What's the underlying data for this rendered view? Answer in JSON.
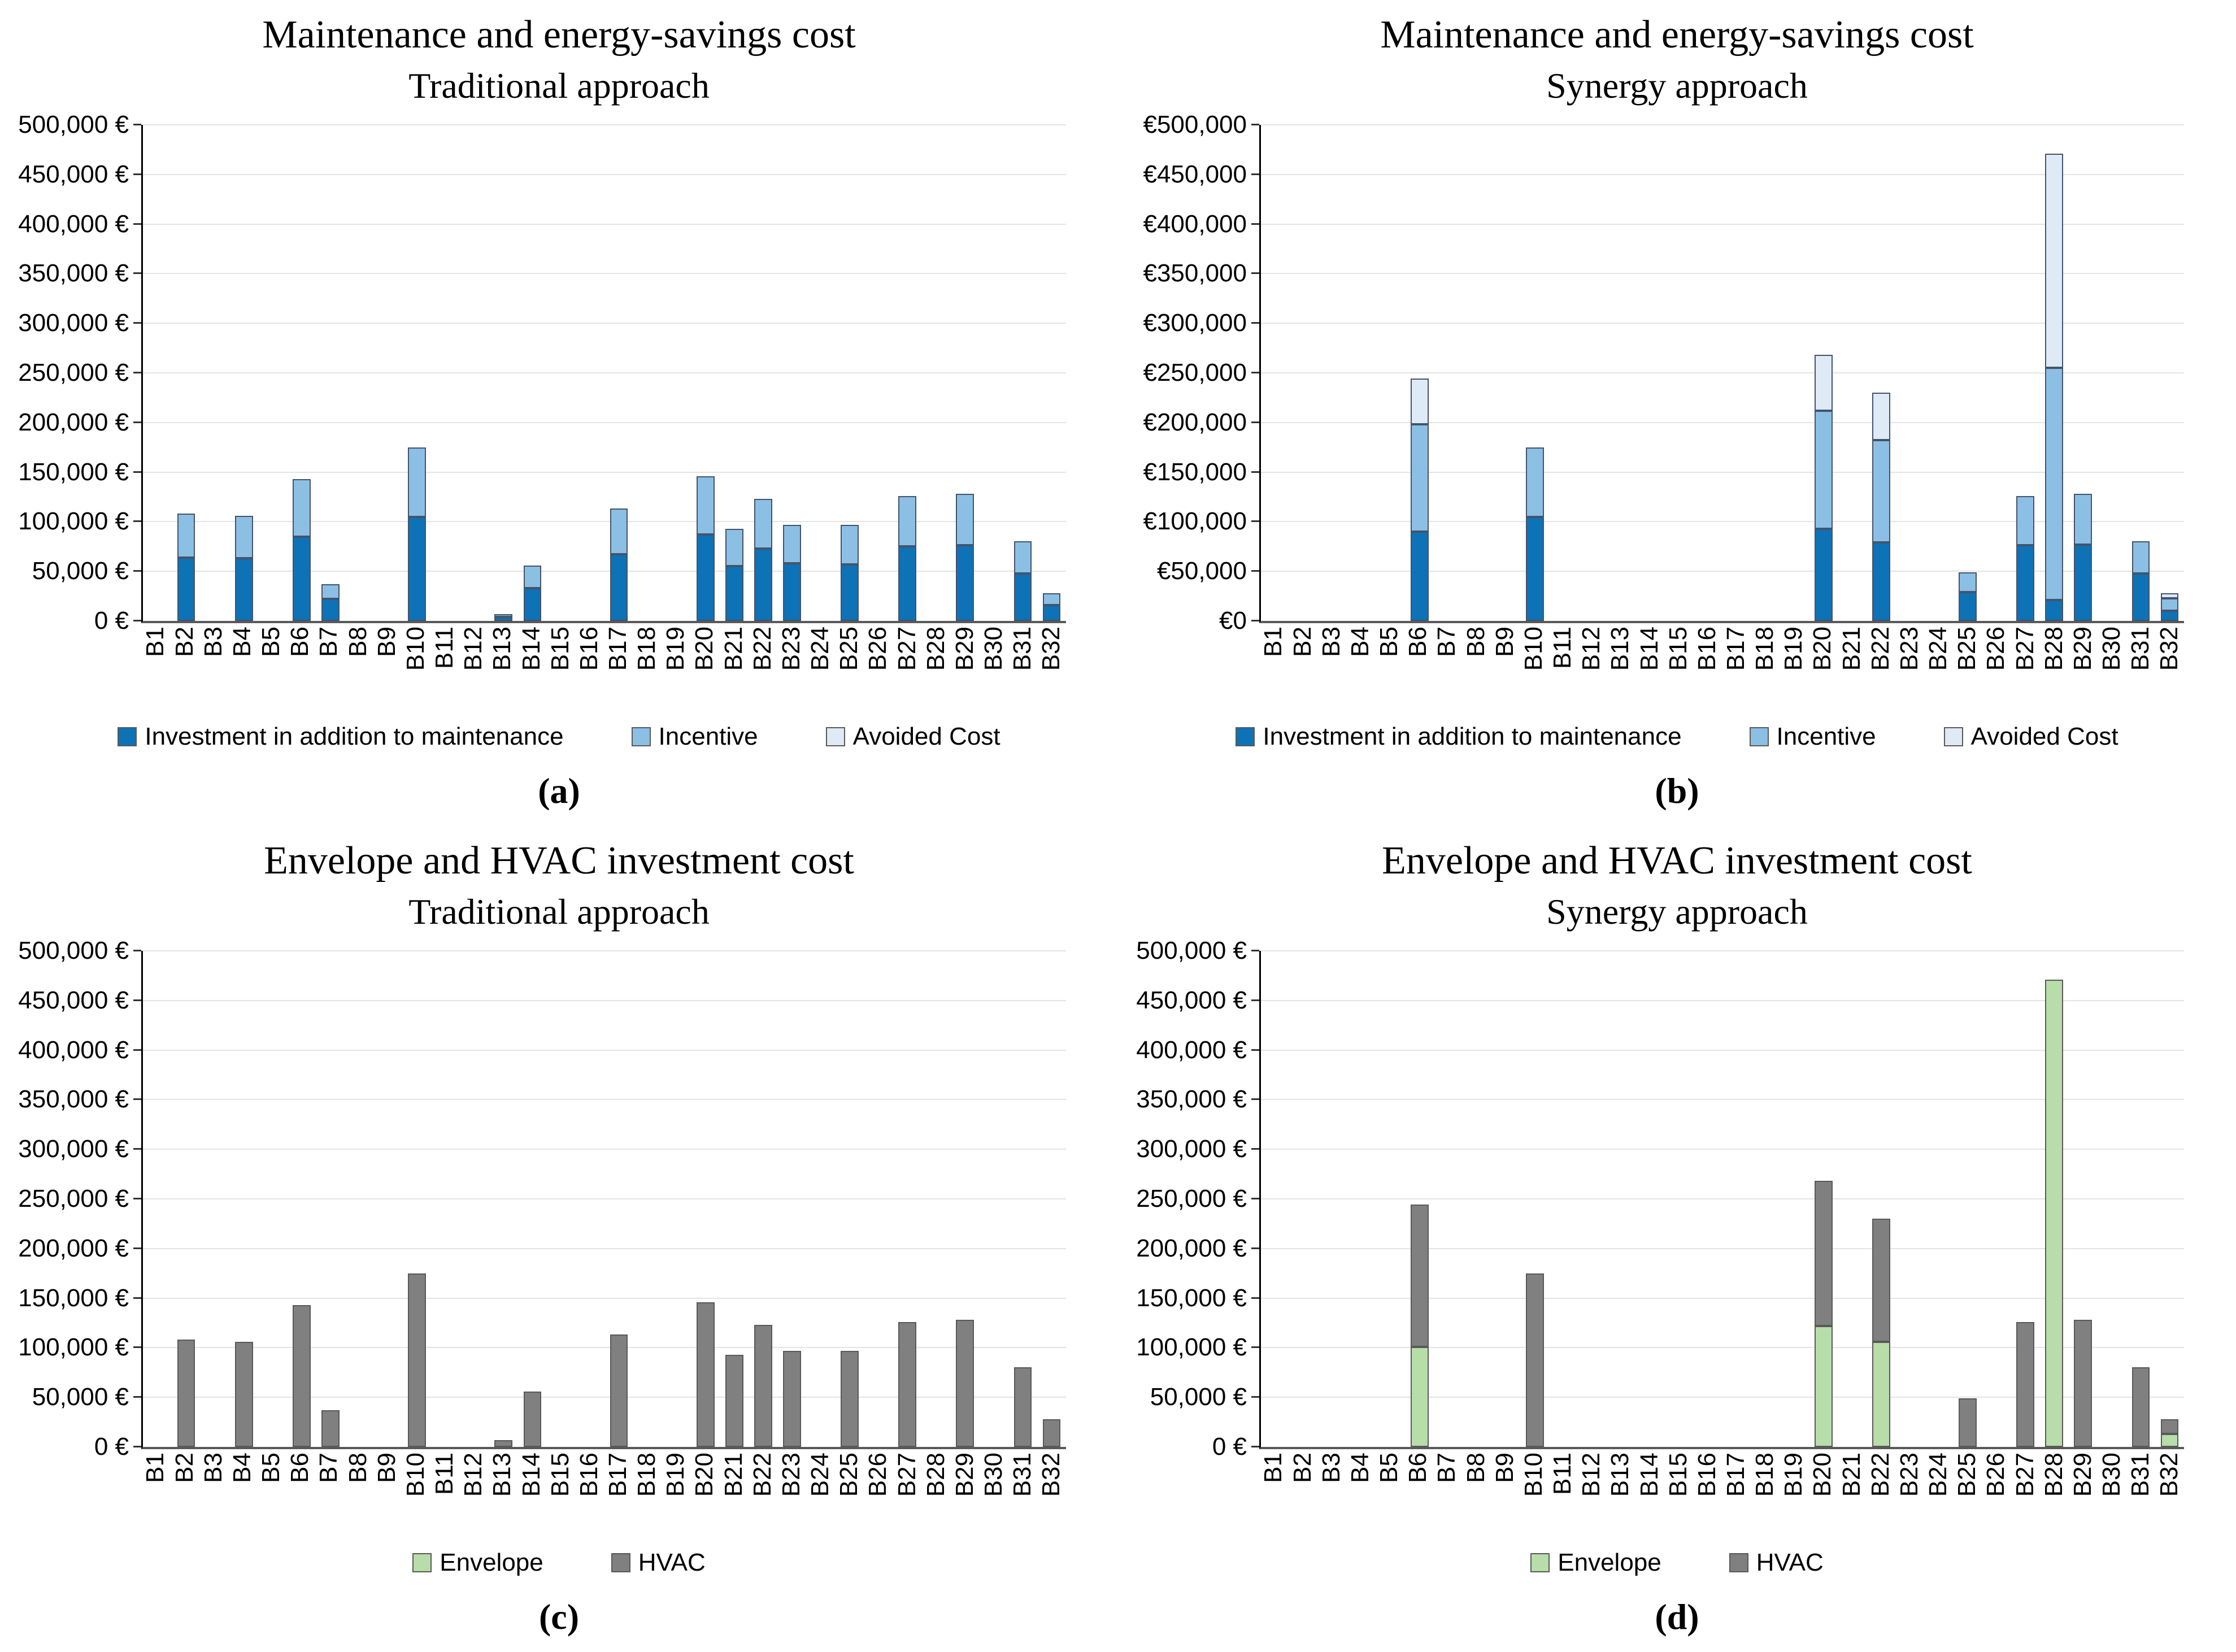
{
  "figure": {
    "panels": [
      {
        "id": "a",
        "title": "Maintenance and energy-savings cost",
        "subtitle": "Traditional approach",
        "caption": "(a)",
        "bar_border": "#44546A",
        "axis": {
          "ymax": 500000,
          "step": 50000,
          "grid": true,
          "y_tick_labels": [
            "0 €",
            "50,000 €",
            "100,000 €",
            "150,000 €",
            "200,000 €",
            "250,000 €",
            "300,000 €",
            "350,000 €",
            "400,000 €",
            "450,000 €",
            "500,000 €"
          ]
        },
        "legend": [
          {
            "label": "Investment in addition to maintenance",
            "color": "#0E72B7"
          },
          {
            "label": "Incentive",
            "color": "#8CBFE4"
          },
          {
            "label": "Avoided Cost",
            "color": "#DEEAF6"
          }
        ],
        "chart_data": {
          "type": "bar",
          "stacked": true,
          "unit": "EUR",
          "ylim": [
            0,
            500000
          ],
          "categories": [
            "B1",
            "B2",
            "B3",
            "B4",
            "B5",
            "B6",
            "B7",
            "B8",
            "B9",
            "B10",
            "B11",
            "B12",
            "B13",
            "B14",
            "B15",
            "B16",
            "B17",
            "B18",
            "B19",
            "B20",
            "B21",
            "B22",
            "B23",
            "B24",
            "B25",
            "B26",
            "B27",
            "B28",
            "B29",
            "B30",
            "B31",
            "B32"
          ],
          "series": [
            {
              "name": "Investment in addition to maintenance",
              "color": "#0E72B7",
              "values": [
                0,
                64000,
                0,
                63000,
                0,
                85000,
                22000,
                0,
                0,
                105000,
                0,
                0,
                4000,
                33000,
                0,
                0,
                67000,
                0,
                0,
                87000,
                55000,
                73000,
                58000,
                0,
                57000,
                0,
                75000,
                0,
                76000,
                0,
                48000,
                16000
              ]
            },
            {
              "name": "Incentive",
              "color": "#8CBFE4",
              "values": [
                0,
                44000,
                0,
                43000,
                0,
                58000,
                15000,
                0,
                0,
                70000,
                0,
                0,
                3000,
                23000,
                0,
                0,
                46000,
                0,
                0,
                59000,
                38000,
                50000,
                39000,
                0,
                40000,
                0,
                51000,
                0,
                52000,
                0,
                32000,
                12000
              ]
            },
            {
              "name": "Avoided Cost",
              "color": "#DEEAF6",
              "values": [
                0,
                0,
                0,
                0,
                0,
                0,
                0,
                0,
                0,
                0,
                0,
                0,
                0,
                0,
                0,
                0,
                0,
                0,
                0,
                0,
                0,
                0,
                0,
                0,
                0,
                0,
                0,
                0,
                0,
                0,
                0,
                0
              ]
            }
          ]
        }
      },
      {
        "id": "b",
        "title": "Maintenance and energy-savings cost",
        "subtitle": "Synergy approach",
        "caption": "(b)",
        "bar_border": "#44546A",
        "axis": {
          "ymax": 500000,
          "step": 50000,
          "grid": true,
          "y_tick_labels": [
            "€0",
            "€50,000",
            "€100,000",
            "€150,000",
            "€200,000",
            "€250,000",
            "€300,000",
            "€350,000",
            "€400,000",
            "€450,000",
            "€500,000"
          ]
        },
        "legend": [
          {
            "label": "Investment in addition to maintenance",
            "color": "#0E72B7"
          },
          {
            "label": "Incentive",
            "color": "#8CBFE4"
          },
          {
            "label": "Avoided Cost",
            "color": "#DEEAF6"
          }
        ],
        "chart_data": {
          "type": "bar",
          "stacked": true,
          "unit": "EUR",
          "ylim": [
            0,
            500000
          ],
          "categories": [
            "B1",
            "B2",
            "B3",
            "B4",
            "B5",
            "B6",
            "B7",
            "B8",
            "B9",
            "B10",
            "B11",
            "B12",
            "B13",
            "B14",
            "B15",
            "B16",
            "B17",
            "B18",
            "B19",
            "B20",
            "B21",
            "B22",
            "B23",
            "B24",
            "B25",
            "B26",
            "B27",
            "B28",
            "B29",
            "B30",
            "B31",
            "B32"
          ],
          "series": [
            {
              "name": "Investment in addition to maintenance",
              "color": "#0E72B7",
              "values": [
                0,
                0,
                0,
                0,
                0,
                90000,
                0,
                0,
                0,
                105000,
                0,
                0,
                0,
                0,
                0,
                0,
                0,
                0,
                0,
                93000,
                0,
                79000,
                0,
                0,
                29000,
                0,
                76000,
                21000,
                77000,
                0,
                48000,
                10000
              ]
            },
            {
              "name": "Incentive",
              "color": "#8CBFE4",
              "values": [
                0,
                0,
                0,
                0,
                0,
                108000,
                0,
                0,
                0,
                70000,
                0,
                0,
                0,
                0,
                0,
                0,
                0,
                0,
                0,
                119000,
                0,
                103000,
                0,
                0,
                20000,
                0,
                50000,
                234000,
                51000,
                0,
                32000,
                13000
              ]
            },
            {
              "name": "Avoided Cost",
              "color": "#DEEAF6",
              "values": [
                0,
                0,
                0,
                0,
                0,
                46000,
                0,
                0,
                0,
                0,
                0,
                0,
                0,
                0,
                0,
                0,
                0,
                0,
                0,
                56000,
                0,
                48000,
                0,
                0,
                0,
                0,
                0,
                216000,
                0,
                0,
                0,
                5000
              ]
            }
          ]
        }
      },
      {
        "id": "c",
        "title": "Envelope and HVAC investment cost",
        "subtitle": "Traditional approach",
        "caption": "(c)",
        "bar_border": "#595959",
        "axis": {
          "ymax": 500000,
          "step": 50000,
          "grid": true,
          "y_tick_labels": [
            "0 €",
            "50,000 €",
            "100,000 €",
            "150,000 €",
            "200,000 €",
            "250,000 €",
            "300,000 €",
            "350,000 €",
            "400,000 €",
            "450,000 €",
            "500,000 €"
          ]
        },
        "legend": [
          {
            "label": "Envelope",
            "color": "#B7DDA8"
          },
          {
            "label": "HVAC",
            "color": "#808080"
          }
        ],
        "chart_data": {
          "type": "bar",
          "stacked": true,
          "unit": "EUR",
          "ylim": [
            0,
            500000
          ],
          "categories": [
            "B1",
            "B2",
            "B3",
            "B4",
            "B5",
            "B6",
            "B7",
            "B8",
            "B9",
            "B10",
            "B11",
            "B12",
            "B13",
            "B14",
            "B15",
            "B16",
            "B17",
            "B18",
            "B19",
            "B20",
            "B21",
            "B22",
            "B23",
            "B24",
            "B25",
            "B26",
            "B27",
            "B28",
            "B29",
            "B30",
            "B31",
            "B32"
          ],
          "series": [
            {
              "name": "Envelope",
              "color": "#B7DDA8",
              "values": [
                0,
                0,
                0,
                0,
                0,
                0,
                0,
                0,
                0,
                0,
                0,
                0,
                0,
                0,
                0,
                0,
                0,
                0,
                0,
                0,
                0,
                0,
                0,
                0,
                0,
                0,
                0,
                0,
                0,
                0,
                0,
                0
              ]
            },
            {
              "name": "HVAC",
              "color": "#808080",
              "values": [
                0,
                108000,
                0,
                106000,
                0,
                143000,
                37000,
                0,
                0,
                175000,
                0,
                0,
                7000,
                56000,
                0,
                0,
                113000,
                0,
                0,
                146000,
                93000,
                123000,
                97000,
                0,
                97000,
                0,
                126000,
                0,
                128000,
                0,
                80000,
                28000
              ]
            }
          ]
        }
      },
      {
        "id": "d",
        "title": "Envelope and HVAC investment cost",
        "subtitle": "Synergy approach",
        "caption": "(d)",
        "bar_border": "#595959",
        "axis": {
          "ymax": 500000,
          "step": 50000,
          "grid": true,
          "y_tick_labels": [
            "0 €",
            "50,000 €",
            "100,000 €",
            "150,000 €",
            "200,000 €",
            "250,000 €",
            "300,000 €",
            "350,000 €",
            "400,000 €",
            "450,000 €",
            "500,000 €"
          ]
        },
        "legend": [
          {
            "label": "Envelope",
            "color": "#B7DDA8"
          },
          {
            "label": "HVAC",
            "color": "#808080"
          }
        ],
        "chart_data": {
          "type": "bar",
          "stacked": true,
          "unit": "EUR",
          "ylim": [
            0,
            500000
          ],
          "categories": [
            "B1",
            "B2",
            "B3",
            "B4",
            "B5",
            "B6",
            "B7",
            "B8",
            "B9",
            "B10",
            "B11",
            "B12",
            "B13",
            "B14",
            "B15",
            "B16",
            "B17",
            "B18",
            "B19",
            "B20",
            "B21",
            "B22",
            "B23",
            "B24",
            "B25",
            "B26",
            "B27",
            "B28",
            "B29",
            "B30",
            "B31",
            "B32"
          ],
          "series": [
            {
              "name": "Envelope",
              "color": "#B7DDA8",
              "values": [
                0,
                0,
                0,
                0,
                0,
                101000,
                0,
                0,
                0,
                0,
                0,
                0,
                0,
                0,
                0,
                0,
                0,
                0,
                0,
                122000,
                0,
                106000,
                0,
                0,
                0,
                0,
                0,
                471000,
                0,
                0,
                0,
                13000
              ]
            },
            {
              "name": "HVAC",
              "color": "#808080",
              "values": [
                0,
                0,
                0,
                0,
                0,
                143000,
                0,
                0,
                0,
                175000,
                0,
                0,
                0,
                0,
                0,
                0,
                0,
                0,
                0,
                146000,
                0,
                124000,
                0,
                0,
                49000,
                0,
                126000,
                0,
                128000,
                0,
                80000,
                15000
              ]
            }
          ]
        }
      }
    ]
  }
}
